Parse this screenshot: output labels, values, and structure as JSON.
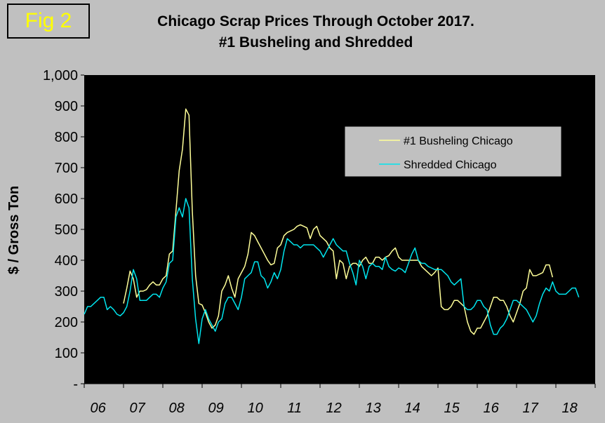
{
  "figure_label": "Fig 2",
  "colors": {
    "background": "#c0c0c0",
    "plot_bg": "#000000",
    "busheling": "#ffff99",
    "shredded": "#00e5ee",
    "fig_label": "#ffff00"
  },
  "chart_data": {
    "type": "line",
    "title": "Chicago Scrap Prices Through October 2017.",
    "subtitle": "#1 Busheling and Shredded",
    "xlabel": "",
    "ylabel": "$ / Gross Ton",
    "ylim": [
      0,
      1000
    ],
    "yticks": [
      0,
      100,
      200,
      300,
      400,
      500,
      600,
      700,
      800,
      900,
      1000
    ],
    "ytick_labels": [
      "-",
      "100",
      "200",
      "300",
      "400",
      "500",
      "600",
      "700",
      "800",
      "900",
      "1,000"
    ],
    "xlim": [
      2006.0,
      2019.0
    ],
    "xtick_labels": [
      "06",
      "07",
      "08",
      "09",
      "10",
      "11",
      "12",
      "13",
      "14",
      "15",
      "16",
      "17",
      "18"
    ],
    "legend_position": "top-right",
    "series": [
      {
        "name": "#1 Busheling Chicago",
        "color": "#ffff99",
        "start": 2007.0,
        "values": [
          260,
          310,
          365,
          340,
          280,
          300,
          300,
          305,
          320,
          330,
          320,
          320,
          340,
          350,
          420,
          430,
          560,
          690,
          760,
          890,
          870,
          560,
          350,
          260,
          255,
          230,
          200,
          180,
          190,
          220,
          300,
          320,
          350,
          310,
          280,
          340,
          360,
          380,
          420,
          490,
          480,
          460,
          440,
          420,
          400,
          385,
          390,
          440,
          450,
          480,
          490,
          495,
          500,
          510,
          515,
          510,
          505,
          470,
          500,
          510,
          480,
          470,
          460,
          440,
          430,
          340,
          400,
          390,
          340,
          380,
          390,
          390,
          380,
          400,
          410,
          390,
          390,
          410,
          410,
          400,
          410,
          415,
          430,
          440,
          410,
          400,
          400,
          400,
          400,
          400,
          400,
          380,
          370,
          360,
          350,
          360,
          375,
          250,
          240,
          240,
          250,
          270,
          270,
          260,
          250,
          200,
          170,
          160,
          180,
          180,
          200,
          220,
          250,
          280,
          280,
          270,
          270,
          250,
          220,
          200,
          230,
          260,
          300,
          310,
          370,
          350,
          350,
          355,
          360,
          385,
          385,
          345
        ]
      },
      {
        "name": "Shredded Chicago",
        "color": "#00e5ee",
        "start": 2006.0,
        "values": [
          225,
          250,
          250,
          260,
          270,
          280,
          280,
          240,
          250,
          240,
          225,
          220,
          230,
          250,
          300,
          370,
          340,
          270,
          270,
          270,
          280,
          290,
          290,
          280,
          310,
          330,
          390,
          400,
          540,
          570,
          540,
          600,
          570,
          340,
          210,
          130,
          210,
          240,
          210,
          190,
          170,
          200,
          210,
          260,
          280,
          280,
          260,
          240,
          280,
          340,
          350,
          360,
          395,
          395,
          350,
          340,
          310,
          330,
          360,
          340,
          370,
          430,
          470,
          460,
          450,
          450,
          440,
          450,
          450,
          450,
          450,
          440,
          430,
          410,
          430,
          450,
          470,
          450,
          440,
          430,
          430,
          390,
          360,
          320,
          400,
          380,
          340,
          380,
          390,
          380,
          380,
          370,
          410,
          380,
          370,
          365,
          375,
          370,
          360,
          390,
          420,
          440,
          400,
          390,
          390,
          380,
          375,
          370,
          370,
          370,
          360,
          350,
          330,
          320,
          330,
          340,
          250,
          240,
          240,
          250,
          270,
          270,
          250,
          240,
          190,
          160,
          160,
          180,
          190,
          210,
          240,
          270,
          270,
          260,
          250,
          240,
          220,
          200,
          220,
          260,
          290,
          310,
          300,
          330,
          300,
          290,
          290,
          290,
          300,
          310,
          310,
          280
        ]
      }
    ]
  }
}
